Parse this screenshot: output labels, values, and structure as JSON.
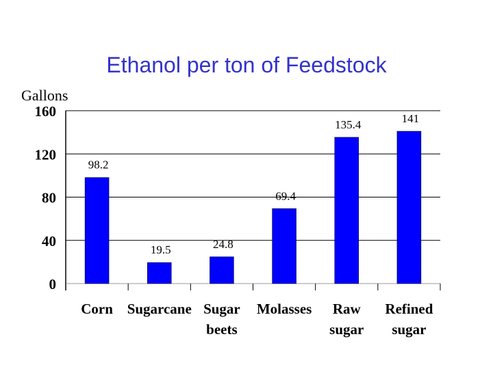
{
  "chart_data": {
    "type": "bar",
    "title": "Ethanol per ton of Feedstock",
    "ylabel": "Gallons",
    "xlabel": "",
    "categories": [
      [
        "Corn"
      ],
      [
        "Sugarcane"
      ],
      [
        "Sugar",
        "beets"
      ],
      [
        "Molasses"
      ],
      [
        "Raw",
        "sugar"
      ],
      [
        "Refined",
        "sugar"
      ]
    ],
    "values": [
      98.2,
      19.5,
      24.8,
      69.4,
      135.4,
      141
    ],
    "data_labels": [
      "98.2",
      "19.5",
      "24.8",
      "69.4",
      "135.4",
      "141"
    ],
    "ylim": [
      0,
      160
    ],
    "yticks": [
      0,
      40,
      80,
      120,
      160
    ],
    "ytick_labels": [
      "0",
      "40",
      "80",
      "120",
      "160"
    ],
    "grid": true,
    "legend": "none",
    "bar_color": "#0000ff"
  }
}
